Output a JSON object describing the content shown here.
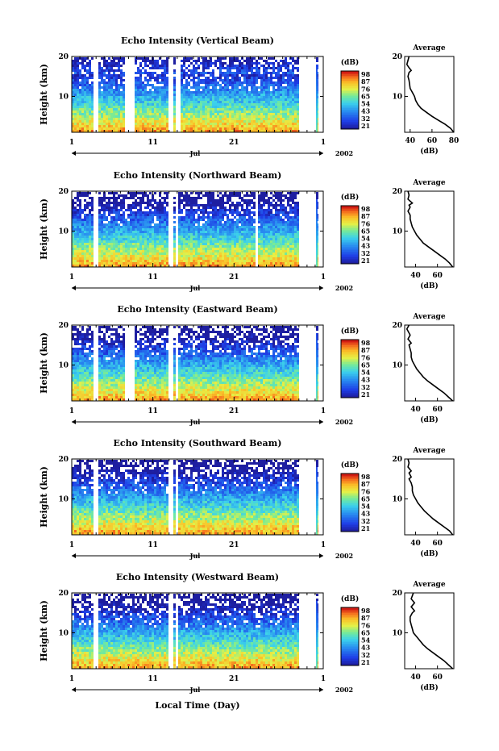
{
  "figure": {
    "xlabel": "Local Time (Day)"
  },
  "chart_data": [
    {
      "type": "heatmap",
      "title": "Echo Intensity (Vertical Beam)",
      "ylabel": "Height (km)",
      "ylim": [
        1,
        20
      ],
      "y_ticks": [
        10,
        20
      ],
      "x_ticks": [
        "1",
        "11",
        "21",
        "1"
      ],
      "x_ticks_days": [
        1,
        11,
        21,
        32
      ],
      "month_label": "Jul",
      "year_label": "2002",
      "colorbar_label": "(dB)",
      "colorbar_ticks": [
        21,
        32,
        43,
        54,
        65,
        76,
        87,
        98
      ],
      "data_gaps_days": [
        [
          3.6,
          4.2
        ],
        [
          7.5,
          8.6
        ],
        [
          12.7,
          13.3
        ],
        [
          13.8,
          14.3
        ],
        [
          14.8,
          14.9
        ],
        [
          29.0,
          31.0
        ],
        [
          31.3,
          32.0
        ]
      ],
      "average_panel": {
        "title": "Average",
        "xlabel": "(dB)",
        "x_ticks": [
          40,
          60,
          80
        ],
        "xlim": [
          35,
          80
        ],
        "ylim": [
          1,
          20
        ],
        "y_ticks": [
          10,
          20
        ],
        "profile": [
          [
            80,
            1
          ],
          [
            77,
            2
          ],
          [
            72,
            3
          ],
          [
            66,
            4
          ],
          [
            60,
            5
          ],
          [
            55,
            6
          ],
          [
            50,
            7
          ],
          [
            47,
            8
          ],
          [
            45,
            9
          ],
          [
            44,
            10
          ],
          [
            42,
            11
          ],
          [
            40,
            12
          ],
          [
            39,
            14
          ],
          [
            38,
            15
          ],
          [
            39,
            16
          ],
          [
            41,
            16.5
          ],
          [
            39,
            17.2
          ],
          [
            37,
            18
          ],
          [
            38,
            19
          ],
          [
            39,
            20
          ]
        ]
      }
    },
    {
      "type": "heatmap",
      "title": "Echo Intensity (Northward Beam)",
      "ylabel": "Height (km)",
      "ylim": [
        1,
        20
      ],
      "y_ticks": [
        10,
        20
      ],
      "x_ticks": [
        "1",
        "11",
        "21",
        "1"
      ],
      "x_ticks_days": [
        1,
        11,
        21,
        32
      ],
      "month_label": "Jul",
      "year_label": "2002",
      "colorbar_label": "(dB)",
      "colorbar_ticks": [
        21,
        32,
        43,
        54,
        65,
        76,
        87,
        98
      ],
      "data_gaps_days": [
        [
          3.6,
          4.0
        ],
        [
          12.7,
          13.3
        ],
        [
          13.8,
          14.1
        ],
        [
          23.6,
          23.7
        ],
        [
          29.0,
          31.0
        ],
        [
          31.3,
          32.0
        ]
      ],
      "average_panel": {
        "title": "Average",
        "xlabel": "(dB)",
        "x_ticks": [
          40,
          60
        ],
        "xlim": [
          30,
          75
        ],
        "ylim": [
          1,
          20
        ],
        "y_ticks": [
          10,
          20
        ],
        "profile": [
          [
            74,
            1
          ],
          [
            71,
            2
          ],
          [
            67,
            3
          ],
          [
            62,
            4
          ],
          [
            57,
            5
          ],
          [
            52,
            6
          ],
          [
            47,
            7
          ],
          [
            44,
            8
          ],
          [
            41,
            9
          ],
          [
            39,
            10
          ],
          [
            37,
            11
          ],
          [
            36,
            12
          ],
          [
            35,
            13
          ],
          [
            35,
            14
          ],
          [
            33,
            15
          ],
          [
            35,
            16
          ],
          [
            34,
            16.5
          ],
          [
            37,
            17
          ],
          [
            35,
            17.5
          ],
          [
            33,
            18
          ],
          [
            34,
            19
          ],
          [
            33,
            20
          ]
        ]
      }
    },
    {
      "type": "heatmap",
      "title": "Echo Intensity (Eastward Beam)",
      "ylabel": "Height (km)",
      "ylim": [
        1,
        20
      ],
      "y_ticks": [
        10,
        20
      ],
      "x_ticks": [
        "1",
        "11",
        "21",
        "1"
      ],
      "x_ticks_days": [
        1,
        11,
        21,
        32
      ],
      "month_label": "Jul",
      "year_label": "2002",
      "colorbar_label": "(dB)",
      "colorbar_ticks": [
        21,
        32,
        43,
        54,
        65,
        76,
        87,
        98
      ],
      "data_gaps_days": [
        [
          3.6,
          4.0
        ],
        [
          7.5,
          8.6
        ],
        [
          12.7,
          13.3
        ],
        [
          13.8,
          14.1
        ],
        [
          29.0,
          31.0
        ],
        [
          31.3,
          32.0
        ]
      ],
      "average_panel": {
        "title": "Average",
        "xlabel": "(dB)",
        "x_ticks": [
          40,
          60
        ],
        "xlim": [
          30,
          75
        ],
        "ylim": [
          1,
          20
        ],
        "y_ticks": [
          10,
          20
        ],
        "profile": [
          [
            74,
            1
          ],
          [
            70,
            2
          ],
          [
            66,
            3
          ],
          [
            61,
            4
          ],
          [
            56,
            5
          ],
          [
            51,
            6
          ],
          [
            47,
            7
          ],
          [
            44,
            8
          ],
          [
            41,
            9
          ],
          [
            39,
            10
          ],
          [
            37,
            11
          ],
          [
            36,
            12
          ],
          [
            36,
            13
          ],
          [
            35,
            14
          ],
          [
            34,
            15
          ],
          [
            36,
            15.5
          ],
          [
            33,
            16.5
          ],
          [
            35,
            17.5
          ],
          [
            33,
            18.5
          ],
          [
            32,
            19
          ],
          [
            34,
            20
          ]
        ]
      }
    },
    {
      "type": "heatmap",
      "title": "Echo Intensity (Southward Beam)",
      "ylabel": "Height (km)",
      "ylim": [
        1,
        20
      ],
      "y_ticks": [
        10,
        20
      ],
      "x_ticks": [
        "1",
        "11",
        "21",
        "1"
      ],
      "x_ticks_days": [
        1,
        11,
        21,
        32
      ],
      "month_label": "Jul",
      "year_label": "2002",
      "colorbar_label": "(dB)",
      "colorbar_ticks": [
        21,
        32,
        43,
        54,
        65,
        76,
        87,
        98
      ],
      "data_gaps_days": [
        [
          3.6,
          4.0
        ],
        [
          12.7,
          13.3
        ],
        [
          13.8,
          14.1
        ],
        [
          29.0,
          31.0
        ],
        [
          31.3,
          32.0
        ]
      ],
      "average_panel": {
        "title": "Average",
        "xlabel": "(dB)",
        "x_ticks": [
          40,
          60
        ],
        "xlim": [
          30,
          75
        ],
        "ylim": [
          1,
          20
        ],
        "y_ticks": [
          10,
          20
        ],
        "profile": [
          [
            74,
            1
          ],
          [
            71,
            2
          ],
          [
            66,
            3
          ],
          [
            61,
            4
          ],
          [
            56,
            5
          ],
          [
            52,
            6
          ],
          [
            48,
            7
          ],
          [
            45,
            8
          ],
          [
            42,
            9
          ],
          [
            40,
            10
          ],
          [
            38,
            11
          ],
          [
            37,
            12
          ],
          [
            37,
            13
          ],
          [
            36,
            14
          ],
          [
            34,
            15
          ],
          [
            36,
            15.5
          ],
          [
            34,
            16.5
          ],
          [
            36,
            17
          ],
          [
            33,
            18
          ],
          [
            34,
            19
          ],
          [
            33,
            20
          ]
        ]
      }
    },
    {
      "type": "heatmap",
      "title": "Echo Intensity (Westward Beam)",
      "ylabel": "Height (km)",
      "ylim": [
        1,
        20
      ],
      "y_ticks": [
        10,
        20
      ],
      "x_ticks": [
        "1",
        "11",
        "21",
        "1"
      ],
      "x_ticks_days": [
        1,
        11,
        21,
        32
      ],
      "month_label": "Jul",
      "year_label": "2002",
      "colorbar_label": "(dB)",
      "colorbar_ticks": [
        21,
        32,
        43,
        54,
        65,
        76,
        87,
        98
      ],
      "data_gaps_days": [
        [
          3.6,
          4.0
        ],
        [
          12.7,
          13.3
        ],
        [
          13.8,
          14.1
        ],
        [
          29.0,
          31.0
        ],
        [
          31.3,
          32.0
        ]
      ],
      "average_panel": {
        "title": "Average",
        "xlabel": "(dB)",
        "x_ticks": [
          40,
          60
        ],
        "xlim": [
          30,
          75
        ],
        "ylim": [
          1,
          20
        ],
        "y_ticks": [
          10,
          20
        ],
        "profile": [
          [
            74,
            1
          ],
          [
            70,
            2
          ],
          [
            66,
            3
          ],
          [
            61,
            4
          ],
          [
            56,
            5
          ],
          [
            51,
            6
          ],
          [
            47,
            7
          ],
          [
            44,
            8
          ],
          [
            41,
            9
          ],
          [
            38,
            10
          ],
          [
            37,
            11
          ],
          [
            36,
            12
          ],
          [
            35,
            13
          ],
          [
            35,
            14
          ],
          [
            37,
            15
          ],
          [
            39,
            15.5
          ],
          [
            36,
            16.5
          ],
          [
            39,
            17.5
          ],
          [
            36,
            18.5
          ],
          [
            38,
            20
          ]
        ]
      }
    }
  ]
}
